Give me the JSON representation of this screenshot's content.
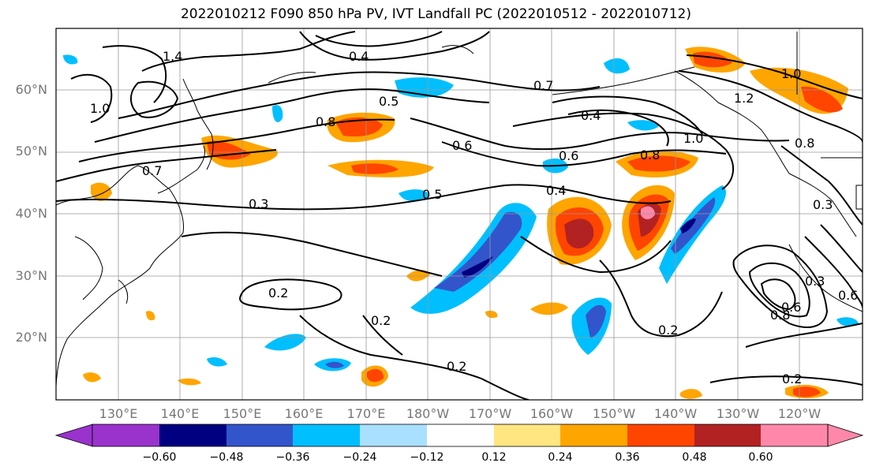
{
  "title": "2022010212 F090 850 hPa PV, IVT Landfall PC (2022010512 - 2022010712)",
  "lat_labels": [
    "60°N",
    "50°N",
    "40°N",
    "30°N",
    "20°N"
  ],
  "lon_labels": [
    "130°E",
    "140°E",
    "150°E",
    "160°E",
    "170°E",
    "180°W",
    "170°W",
    "160°W",
    "150°W",
    "140°W",
    "130°W",
    "120°W"
  ],
  "contour_labels": {
    "c1": "0.4",
    "c2": "0.5",
    "c3": "0.7",
    "c4": "0.4",
    "c5": "1.0",
    "c6": "0.6",
    "c7": "0.8",
    "c8": "0.4",
    "c9": "0.5",
    "c10": "0.3",
    "c11": "0.2",
    "c12": "0.2",
    "c13": "0.2",
    "c14": "0.2",
    "c15": "0.2",
    "c16": "0.6",
    "c17": "0.8",
    "c18": "1.0",
    "c19": "1.2",
    "c20": "0.8",
    "c21": "0.7",
    "c22": "1.0",
    "c23": "1.4",
    "c24": "0.6",
    "c25": "0.3",
    "c26": "0.8",
    "c27": "0.6",
    "c28": "0.3"
  },
  "colorbar": {
    "colors": [
      "#9933cc",
      "#000080",
      "#3355cc",
      "#00bfff",
      "#aae0ff",
      "#ffffff",
      "#ffe680",
      "#ffa500",
      "#ff4500",
      "#b22222",
      "#ff88aa"
    ],
    "ticks": [
      "−0.60",
      "−0.48",
      "−0.36",
      "−0.24",
      "−0.12",
      "0.12",
      "0.24",
      "0.36",
      "0.48",
      "0.60"
    ]
  }
}
